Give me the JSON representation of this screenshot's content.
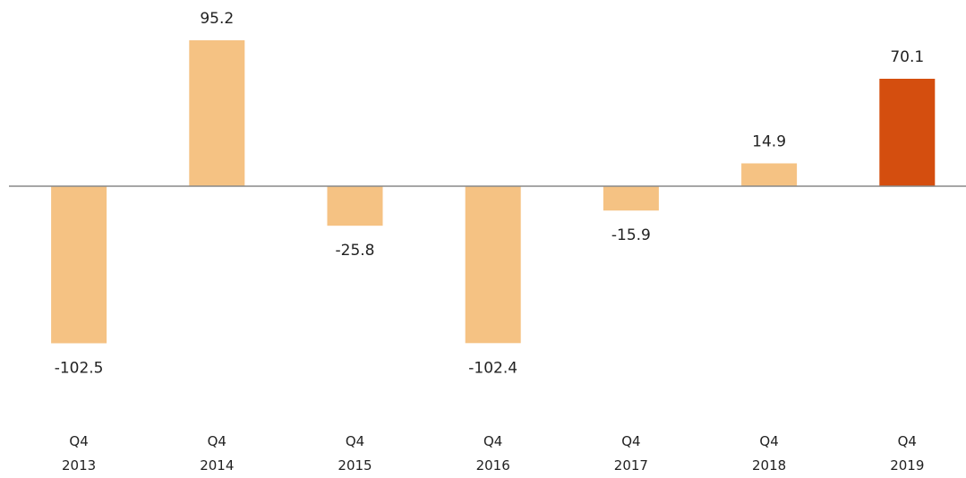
{
  "chart_data": {
    "type": "bar",
    "categories": [
      "Q4 2013",
      "Q4 2014",
      "Q4 2015",
      "Q4 2016",
      "Q4 2017",
      "Q4 2018",
      "Q4 2019"
    ],
    "values": [
      -102.5,
      95.2,
      -25.8,
      -102.4,
      -15.9,
      14.9,
      70.1
    ],
    "colors": [
      "#f5c283",
      "#f5c283",
      "#f5c283",
      "#f5c283",
      "#f5c283",
      "#f5c283",
      "#d44e0f"
    ]
  }
}
